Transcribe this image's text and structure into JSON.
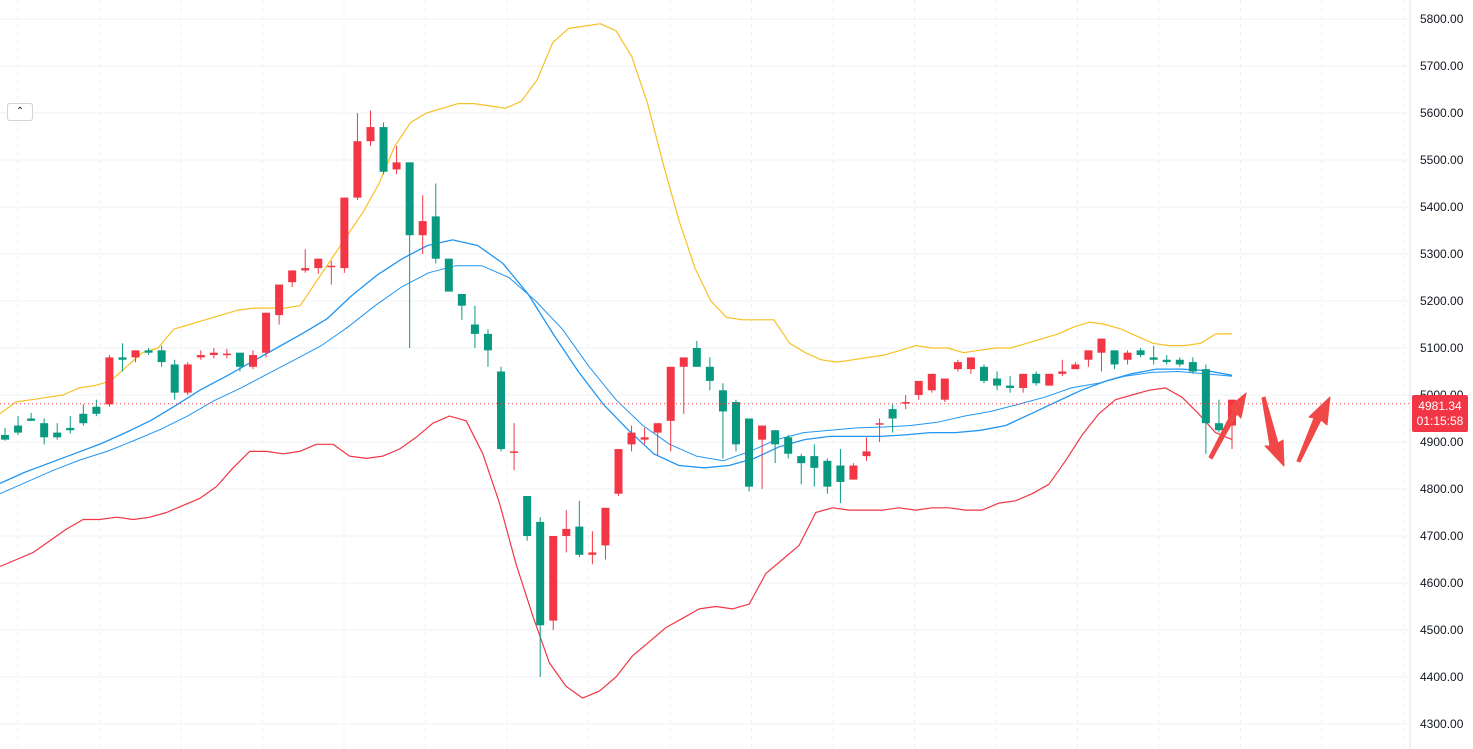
{
  "chart_data": {
    "type": "candlestick",
    "title": "",
    "xlabel": "",
    "ylabel": "",
    "ylim": [
      4280,
      5830
    ],
    "grid": true,
    "y_ticks": [
      "5800.00",
      "5700.00",
      "5600.00",
      "5500.00",
      "5400.00",
      "5300.00",
      "5200.00",
      "5100.00",
      "5000.00",
      "4900.00",
      "4800.00",
      "4700.00",
      "4600.00",
      "4500.00",
      "4400.00",
      "4300.00"
    ],
    "current_price": {
      "value": 4981.34,
      "label": "4981.34",
      "countdown": "01:15:58",
      "color": "#f23645"
    },
    "colors": {
      "up": "#f23645",
      "down": "#089981",
      "upper_band": "#f7c125",
      "lower_band": "#f23645",
      "ma_fast": "#2196f3",
      "ma_slow": "#2196f3",
      "grid": "#eef0f4",
      "arrows": "#f04747"
    },
    "candles": [
      [
        4915,
        4930,
        4905,
        4903
      ],
      [
        4935,
        4955,
        4920,
        4915
      ],
      [
        4950,
        4962,
        4945,
        4948
      ],
      [
        4940,
        4950,
        4910,
        4895
      ],
      [
        4920,
        4940,
        4910,
        4905
      ],
      [
        4930,
        4955,
        4925,
        4918
      ],
      [
        4960,
        4980,
        4940,
        4935
      ],
      [
        4975,
        4990,
        4960,
        4955
      ],
      [
        4980,
        5085,
        5080,
        4975
      ],
      [
        5080,
        5110,
        5075,
        5050
      ],
      [
        5080,
        5095,
        5095,
        5070
      ],
      [
        5095,
        5100,
        5090,
        5085
      ],
      [
        5095,
        5105,
        5070,
        5060
      ],
      [
        5065,
        5075,
        5005,
        4990
      ],
      [
        5005,
        5070,
        5065,
        5000
      ],
      [
        5080,
        5095,
        5085,
        5075
      ],
      [
        5085,
        5100,
        5090,
        5078
      ],
      [
        5085,
        5098,
        5088,
        5078
      ],
      [
        5090,
        5090,
        5060,
        5050
      ],
      [
        5060,
        5095,
        5085,
        5055
      ],
      [
        5090,
        5110,
        5175,
        5080
      ],
      [
        5170,
        5225,
        5235,
        5150
      ],
      [
        5240,
        5265,
        5265,
        5230
      ],
      [
        5265,
        5310,
        5270,
        5260
      ],
      [
        5270,
        5290,
        5290,
        5258
      ],
      [
        5275,
        5285,
        5275,
        5235
      ],
      [
        5270,
        5330,
        5420,
        5260
      ],
      [
        5420,
        5600,
        5540,
        5415
      ],
      [
        5540,
        5605,
        5570,
        5530
      ],
      [
        5570,
        5580,
        5475,
        5470
      ],
      [
        5480,
        5530,
        5495,
        5470
      ],
      [
        5495,
        5495,
        5340,
        5100
      ],
      [
        5340,
        5425,
        5370,
        5300
      ],
      [
        5380,
        5450,
        5290,
        5280
      ],
      [
        5290,
        5240,
        5220,
        5250
      ],
      [
        5215,
        5175,
        5190,
        5160
      ],
      [
        5150,
        5190,
        5130,
        5100
      ],
      [
        5130,
        5140,
        5095,
        5060
      ],
      [
        5050,
        5060,
        4885,
        4880
      ],
      [
        4880,
        4940,
        4880,
        4840
      ],
      [
        4785,
        4780,
        4700,
        4690
      ],
      [
        4730,
        4740,
        4510,
        4400
      ],
      [
        4520,
        4530,
        4700,
        4500
      ],
      [
        4700,
        4755,
        4715,
        4665
      ],
      [
        4720,
        4775,
        4660,
        4655
      ],
      [
        4660,
        4710,
        4665,
        4640
      ],
      [
        4680,
        4760,
        4760,
        4650
      ],
      [
        4790,
        4800,
        4885,
        4785
      ],
      [
        4895,
        4935,
        4920,
        4880
      ],
      [
        4905,
        4930,
        4910,
        4895
      ],
      [
        4920,
        4940,
        4940,
        4870
      ],
      [
        4945,
        4935,
        5060,
        4880
      ],
      [
        5060,
        5070,
        5080,
        4960
      ],
      [
        5100,
        5115,
        5060,
        5080
      ],
      [
        5060,
        5080,
        5030,
        5010
      ],
      [
        5010,
        5025,
        4965,
        4865
      ],
      [
        4985,
        4990,
        4895,
        4880
      ],
      [
        4950,
        4950,
        4805,
        4795
      ],
      [
        4905,
        4935,
        4935,
        4800
      ],
      [
        4925,
        4890,
        4895,
        4855
      ],
      [
        4910,
        4915,
        4875,
        4865
      ],
      [
        4870,
        4875,
        4855,
        4810
      ],
      [
        4870,
        4895,
        4845,
        4805
      ],
      [
        4860,
        4865,
        4805,
        4790
      ],
      [
        4850,
        4885,
        4815,
        4770
      ],
      [
        4820,
        4855,
        4850,
        4840
      ],
      [
        4870,
        4910,
        4880,
        4860
      ],
      [
        4940,
        4950,
        4940,
        4900
      ],
      [
        4970,
        4980,
        4950,
        4920
      ],
      [
        4985,
        5000,
        4985,
        4970
      ],
      [
        5000,
        5030,
        5030,
        4990
      ],
      [
        5010,
        5040,
        5045,
        5005
      ],
      [
        4990,
        5035,
        5035,
        4985
      ],
      [
        5055,
        5075,
        5070,
        5050
      ],
      [
        5055,
        5070,
        5080,
        5045
      ],
      [
        5060,
        5065,
        5030,
        5025
      ],
      [
        5035,
        5050,
        5020,
        5010
      ],
      [
        5020,
        5040,
        5015,
        5005
      ],
      [
        5015,
        5040,
        5045,
        5005
      ],
      [
        5045,
        5050,
        5025,
        5020
      ],
      [
        5020,
        5030,
        5045,
        5020
      ],
      [
        5045,
        5075,
        5050,
        5040
      ],
      [
        5055,
        5070,
        5065,
        5055
      ],
      [
        5075,
        5095,
        5095,
        5060
      ],
      [
        5090,
        5110,
        5120,
        5050
      ],
      [
        5095,
        5090,
        5065,
        5055
      ],
      [
        5075,
        5095,
        5090,
        5065
      ],
      [
        5095,
        5100,
        5085,
        5080
      ],
      [
        5080,
        5105,
        5075,
        5065
      ],
      [
        5075,
        5085,
        5070,
        5065
      ],
      [
        5075,
        5080,
        5065,
        5060
      ],
      [
        5070,
        5080,
        5050,
        5045
      ],
      [
        5055,
        5065,
        4940,
        4875
      ],
      [
        4940,
        4990,
        4925,
        4920
      ],
      [
        4935,
        4945,
        4990,
        4885
      ]
    ],
    "upper_band": [
      4960,
      4985,
      4990,
      4995,
      5000,
      5015,
      5020,
      5030,
      5060,
      5090,
      5100,
      5140,
      5150,
      5160,
      5170,
      5180,
      5185,
      5185,
      5185,
      5190,
      5240,
      5290,
      5340,
      5390,
      5450,
      5530,
      5580,
      5600,
      5610,
      5620,
      5620,
      5615,
      5610,
      5625,
      5670,
      5750,
      5780,
      5785,
      5790,
      5775,
      5720,
      5620,
      5490,
      5370,
      5270,
      5200,
      5165,
      5160,
      5160,
      5160,
      5110,
      5090,
      5075,
      5070,
      5075,
      5080,
      5085,
      5095,
      5105,
      5100,
      5100,
      5090,
      5095,
      5100,
      5100,
      5110,
      5120,
      5130,
      5145,
      5155,
      5150,
      5140,
      5125,
      5110,
      5105,
      5105,
      5110,
      5130,
      5130
    ],
    "lower_band": [
      4635,
      4650,
      4665,
      4690,
      4715,
      4735,
      4735,
      4740,
      4735,
      4740,
      4750,
      4765,
      4780,
      4805,
      4845,
      4880,
      4880,
      4875,
      4880,
      4895,
      4895,
      4870,
      4865,
      4870,
      4885,
      4910,
      4940,
      4955,
      4945,
      4875,
      4770,
      4640,
      4530,
      4430,
      4380,
      4355,
      4370,
      4400,
      4445,
      4475,
      4505,
      4525,
      4545,
      4550,
      4545,
      4555,
      4620,
      4650,
      4680,
      4750,
      4760,
      4755,
      4755,
      4755,
      4760,
      4755,
      4760,
      4760,
      4755,
      4755,
      4770,
      4775,
      4790,
      4810,
      4860,
      4915,
      4960,
      4990,
      5000,
      5010,
      5015,
      4995,
      4960,
      4920,
      4905
    ],
    "ma_fast": [
      4812,
      4836,
      4856,
      4876,
      4896,
      4920,
      4946,
      4978,
      5012,
      5040,
      5070,
      5100,
      5130,
      5162,
      5212,
      5255,
      5290,
      5318,
      5330,
      5318,
      5280,
      5215,
      5130,
      5050,
      4980,
      4925,
      4875,
      4850,
      4845,
      4850,
      4865,
      4890,
      4905,
      4912,
      4912,
      4912,
      4915,
      4920,
      4920,
      4925,
      4935,
      4960,
      4985,
      5010,
      5030,
      5045,
      5055,
      5055,
      5052,
      5042
    ],
    "ma_slow": [
      4790,
      4815,
      4840,
      4862,
      4880,
      4903,
      4927,
      4955,
      4988,
      5015,
      5045,
      5075,
      5105,
      5145,
      5190,
      5230,
      5260,
      5275,
      5275,
      5250,
      5200,
      5140,
      5060,
      4990,
      4935,
      4895,
      4870,
      4860,
      4880,
      4905,
      4920,
      4925,
      4930,
      4932,
      4935,
      4942,
      4955,
      4965,
      4980,
      4995,
      5015,
      5025,
      5040,
      5048,
      5050,
      5045,
      5040
    ],
    "annotations": [
      {
        "type": "arrow",
        "direction": "up",
        "label": ""
      },
      {
        "type": "arrow",
        "direction": "down",
        "label": ""
      },
      {
        "type": "arrow",
        "direction": "up",
        "label": ""
      }
    ]
  }
}
